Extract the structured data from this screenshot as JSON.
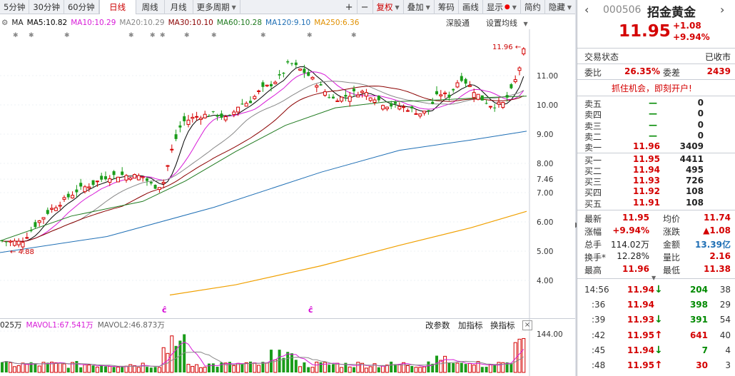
{
  "toolbar": {
    "items": [
      "5分钟",
      "30分钟",
      "60分钟",
      "日线",
      "周线",
      "月线",
      "更多周期"
    ],
    "active": "日线",
    "plus": "+",
    "minus": "−",
    "fuquan": "复权",
    "diejia": "叠加",
    "chouma": "筹码",
    "huaxian": "画线",
    "xianshi": "显示",
    "jianyue": "简约",
    "yincang": "隐藏"
  },
  "indicator": {
    "ma_label": "MA",
    "ma5": "MA5:10.82",
    "ma10": "MA10:10.29",
    "ma20": "MA20:10.29",
    "ma30": "MA30:10.10",
    "ma60": "MA60:10.28",
    "ma120": "MA120:9.10",
    "ma250": "MA250:6.36",
    "deep": "深股通",
    "settings": "设置均线"
  },
  "volume_line": {
    "vol": "025万",
    "mavol1": "MAVOL1:67.541万",
    "mavol2": "MAVOL2:46.873万",
    "btn_params": "改参数",
    "btn_add": "加指标",
    "btn_switch": "换指标",
    "close": "×"
  },
  "axis": {
    "ticks": [
      "11.00",
      "10.00",
      "9.00",
      "8.00",
      "7.46",
      "7.00",
      "6.00",
      "5.00",
      "4.00"
    ],
    "vol_tick": "144.00",
    "high_marker": "11.96",
    "low_marker": "4.88"
  },
  "stock": {
    "code": "000506",
    "name": "招金黄金",
    "price": "11.95",
    "change": "+1.08",
    "pct": "+9.94%"
  },
  "status": {
    "label": "交易状态",
    "value": "已收市"
  },
  "weibi": {
    "label1": "委比",
    "value1": "26.35%",
    "label2": "委差",
    "value2": "2439"
  },
  "promo": "抓住机会，即刻开户!",
  "order_book": {
    "sells": [
      {
        "label": "卖五",
        "price": "—",
        "vol": "0"
      },
      {
        "label": "卖四",
        "price": "—",
        "vol": "0"
      },
      {
        "label": "卖三",
        "price": "—",
        "vol": "0"
      },
      {
        "label": "卖二",
        "price": "—",
        "vol": "0"
      },
      {
        "label": "卖一",
        "price": "11.96",
        "vol": "3409"
      }
    ],
    "buys": [
      {
        "label": "买一",
        "price": "11.95",
        "vol": "4411"
      },
      {
        "label": "买二",
        "price": "11.94",
        "vol": "495"
      },
      {
        "label": "买三",
        "price": "11.93",
        "vol": "726"
      },
      {
        "label": "买四",
        "price": "11.92",
        "vol": "108"
      },
      {
        "label": "买五",
        "price": "11.91",
        "vol": "108"
      }
    ]
  },
  "quote": [
    {
      "l1": "最新",
      "v1": "11.95",
      "l2": "均价",
      "v2": "11.74"
    },
    {
      "l1": "涨幅",
      "v1": "+9.94%",
      "l2": "涨跌",
      "v2": "▲1.08"
    },
    {
      "l1": "总手",
      "v1": "114.02万",
      "l2": "金额",
      "v2": "13.39亿"
    },
    {
      "l1": "换手*",
      "v1": "12.28%",
      "l2": "量比",
      "v2": "2.16"
    },
    {
      "l1": "最高",
      "v1": "11.96",
      "l2": "最低",
      "v2": "11.38"
    }
  ],
  "ticks": [
    {
      "time": "14:56",
      "price": "11.94",
      "dir": "down",
      "vol": "204",
      "n": "38"
    },
    {
      "time": ":36",
      "price": "11.94",
      "dir": "none",
      "vol": "398",
      "n": "29"
    },
    {
      "time": ":39",
      "price": "11.93",
      "dir": "down",
      "vol": "391",
      "n": "54"
    },
    {
      "time": ":42",
      "price": "11.95",
      "dir": "up",
      "vol": "641",
      "n": "40"
    },
    {
      "time": ":45",
      "price": "11.94",
      "dir": "down",
      "vol": "7",
      "n": "4"
    },
    {
      "time": ":48",
      "price": "11.95",
      "dir": "up",
      "vol": "30",
      "n": "3"
    }
  ],
  "colors": {
    "up": "#d40000",
    "down": "#008a00",
    "ma5": "#000000",
    "ma10": "#d81bd8",
    "ma20": "#888888",
    "ma30": "#8b0000",
    "ma60": "#1f7a1f",
    "ma120": "#1f6fb5",
    "ma250": "#f0a000"
  }
}
